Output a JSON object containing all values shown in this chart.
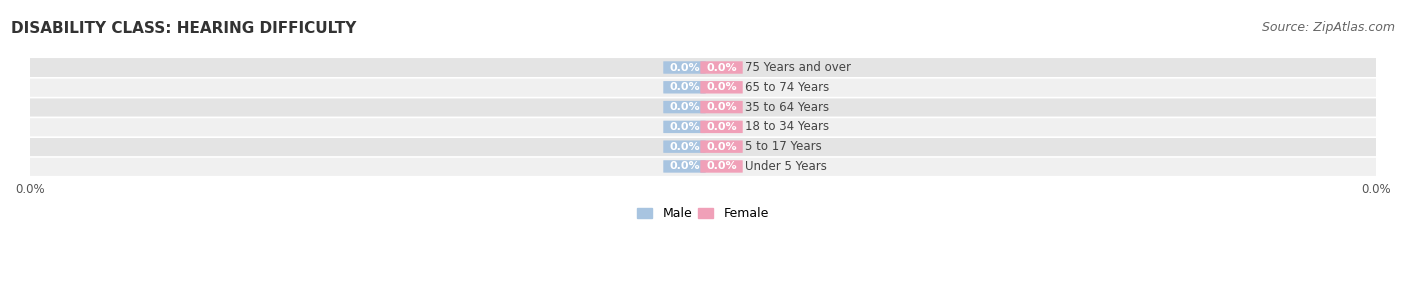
{
  "title": "DISABILITY CLASS: HEARING DIFFICULTY",
  "source": "Source: ZipAtlas.com",
  "categories": [
    "Under 5 Years",
    "5 to 17 Years",
    "18 to 34 Years",
    "35 to 64 Years",
    "65 to 74 Years",
    "75 Years and over"
  ],
  "male_values": [
    0.0,
    0.0,
    0.0,
    0.0,
    0.0,
    0.0
  ],
  "female_values": [
    0.0,
    0.0,
    0.0,
    0.0,
    0.0,
    0.0
  ],
  "male_color": "#a8c4e0",
  "female_color": "#f0a0b8",
  "row_bg_color_odd": "#f0f0f0",
  "row_bg_color_even": "#e4e4e4",
  "title_fontsize": 11,
  "source_fontsize": 9,
  "label_fontsize": 8.5,
  "value_fontsize": 8,
  "bar_height": 0.62,
  "min_bar_visual": 0.055,
  "background_color": "#ffffff"
}
